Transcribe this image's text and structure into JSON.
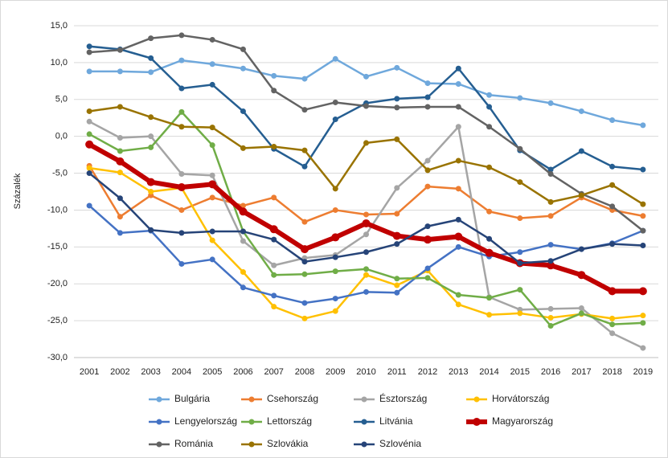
{
  "chart_data": {
    "type": "line",
    "ylabel": "Százalék",
    "categories": [
      "2001",
      "2002",
      "2003",
      "2004",
      "2005",
      "2006",
      "2007",
      "2008",
      "2009",
      "2010",
      "2011",
      "2012",
      "2013",
      "2014",
      "2015",
      "2016",
      "2017",
      "2018",
      "2019"
    ],
    "ylim": [
      -30,
      15
    ],
    "yticks": [
      {
        "value": -30,
        "label": "-30,0"
      },
      {
        "value": -25,
        "label": "-25,0"
      },
      {
        "value": -20,
        "label": "-20,0"
      },
      {
        "value": -15,
        "label": "-15,0"
      },
      {
        "value": -10,
        "label": "-10,0"
      },
      {
        "value": -5,
        "label": "-5,0"
      },
      {
        "value": 0,
        "label": "0,0"
      },
      {
        "value": 5,
        "label": "5,0"
      },
      {
        "value": 10,
        "label": "10,0"
      },
      {
        "value": 15,
        "label": "15,0"
      }
    ],
    "grid": true,
    "series": [
      {
        "name": "Bulgária",
        "color": "#6fa8dc",
        "values": [
          8.8,
          8.8,
          8.7,
          10.3,
          9.8,
          9.2,
          8.2,
          7.8,
          10.5,
          8.1,
          9.3,
          7.2,
          7.1,
          5.6,
          5.2,
          4.5,
          3.4,
          2.2,
          1.5
        ]
      },
      {
        "name": "Csehország",
        "color": "#ed7d31",
        "values": [
          -4.0,
          -10.9,
          -8.0,
          -10.0,
          -8.3,
          -9.4,
          -8.3,
          -11.6,
          -10.0,
          -10.6,
          -10.5,
          -6.8,
          -7.1,
          -10.2,
          -11.1,
          -10.8,
          -8.3,
          -10.0,
          -10.8
        ]
      },
      {
        "name": "Észtország",
        "color": "#a5a5a5",
        "values": [
          2.0,
          -0.2,
          0.0,
          -5.1,
          -5.3,
          -14.2,
          -17.5,
          -16.5,
          -16.1,
          -13.3,
          -7.0,
          -3.3,
          1.3,
          -21.8,
          -23.5,
          -23.4,
          -23.3,
          -26.7,
          -28.7
        ]
      },
      {
        "name": "Horvátország",
        "color": "#ffc000",
        "values": [
          -4.3,
          -4.9,
          -7.5,
          -7.0,
          -14.1,
          -18.4,
          -23.1,
          -24.7,
          -23.7,
          -18.8,
          -20.2,
          -18.2,
          -22.8,
          -24.2,
          -24.0,
          -24.6,
          -24.1,
          -24.7,
          -24.3
        ]
      },
      {
        "name": "Lengyelország",
        "color": "#4472c4",
        "values": [
          -9.4,
          -13.1,
          -12.8,
          -17.3,
          -16.7,
          -20.5,
          -21.6,
          -22.6,
          -22.0,
          -21.1,
          -21.2,
          -17.9,
          -15.0,
          -16.3,
          -15.7,
          -14.7,
          -15.3,
          -14.5,
          -12.8
        ]
      },
      {
        "name": "Lettország",
        "color": "#70ad47",
        "values": [
          0.3,
          -2.0,
          -1.5,
          3.3,
          -1.2,
          -12.9,
          -18.8,
          -18.7,
          -18.3,
          -18.0,
          -19.3,
          -19.2,
          -21.5,
          -21.9,
          -20.8,
          -25.7,
          -24.0,
          -25.5,
          -25.3
        ]
      },
      {
        "name": "Litvánia",
        "color": "#255e91",
        "values": [
          12.2,
          11.8,
          10.6,
          6.5,
          7.0,
          3.4,
          -1.7,
          -4.1,
          2.3,
          4.5,
          5.1,
          5.3,
          9.2,
          4.0,
          -1.9,
          -4.5,
          -2.0,
          -4.1,
          -4.5
        ]
      },
      {
        "name": "Magyarország",
        "color": "#c00000",
        "values": [
          -1.1,
          -3.4,
          -6.2,
          -6.9,
          -6.5,
          -10.2,
          -12.6,
          -15.3,
          -13.7,
          -11.8,
          -13.5,
          -14.0,
          -13.6,
          -15.8,
          -17.2,
          -17.5,
          -18.8,
          -21.0,
          -21.0
        ]
      },
      {
        "name": "Románia",
        "color": "#636363",
        "values": [
          11.4,
          11.7,
          13.3,
          13.7,
          13.1,
          11.8,
          6.2,
          3.6,
          4.6,
          4.1,
          3.9,
          4.0,
          4.0,
          1.3,
          -1.7,
          -5.1,
          -7.8,
          -9.5,
          -12.8
        ]
      },
      {
        "name": "Szlovákia",
        "color": "#997300",
        "values": [
          3.4,
          4.0,
          2.6,
          1.3,
          1.2,
          -1.6,
          -1.4,
          -1.9,
          -7.1,
          -0.9,
          -0.4,
          -4.6,
          -3.3,
          -4.2,
          -6.2,
          -8.9,
          -8.0,
          -6.6,
          -9.2
        ]
      },
      {
        "name": "Szlovénia",
        "color": "#264478",
        "values": [
          -5.0,
          -8.4,
          -12.7,
          -13.1,
          -12.9,
          -12.9,
          -14.0,
          -17.0,
          -16.4,
          -15.7,
          -14.6,
          -12.2,
          -11.3,
          -13.9,
          -17.2,
          -16.9,
          -15.3,
          -14.6,
          -14.8
        ]
      }
    ]
  }
}
